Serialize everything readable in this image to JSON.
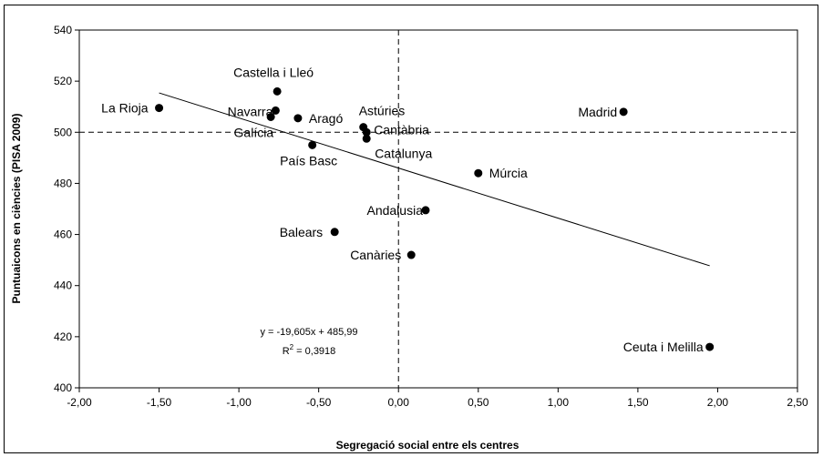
{
  "chart_data": {
    "type": "scatter",
    "xlabel": "Segregació social entre els centres",
    "ylabel": "Puntuaicons en ciències (PISA 2009)",
    "xlim": [
      -2.0,
      2.5
    ],
    "ylim": [
      400,
      540
    ],
    "x_ticks": [
      -2.0,
      -1.5,
      -1.0,
      -0.5,
      0.0,
      0.5,
      1.0,
      1.5,
      2.0,
      2.5
    ],
    "x_tick_labels": [
      "-2,00",
      "-1,50",
      "-1,00",
      "-0,50",
      "0,00",
      "0,50",
      "1,00",
      "1,50",
      "2,00",
      "2,50"
    ],
    "y_ticks": [
      400,
      420,
      440,
      460,
      480,
      500,
      520,
      540
    ],
    "y_tick_labels": [
      "400",
      "420",
      "440",
      "460",
      "480",
      "500",
      "520",
      "540"
    ],
    "grid": false,
    "reference_lines": {
      "x": 0,
      "y": 500,
      "style": "dashed"
    },
    "points": [
      {
        "label": "La Rioja",
        "x": -1.5,
        "y": 509.5
      },
      {
        "label": "Castella i Lleó",
        "x": -0.76,
        "y": 516
      },
      {
        "label": "Navarra",
        "x": -0.77,
        "y": 508.5
      },
      {
        "label": "Galícia",
        "x": -0.8,
        "y": 506
      },
      {
        "label": "Aragó",
        "x": -0.63,
        "y": 505.5
      },
      {
        "label": "País Basc",
        "x": -0.54,
        "y": 495
      },
      {
        "label": "Astúries",
        "x": -0.22,
        "y": 502
      },
      {
        "label": "Cantàbria",
        "x": -0.2,
        "y": 500
      },
      {
        "label": "Catalunya",
        "x": -0.2,
        "y": 497.5
      },
      {
        "label": "Madrid",
        "x": 1.41,
        "y": 508
      },
      {
        "label": "Múrcia",
        "x": 0.5,
        "y": 484
      },
      {
        "label": "Andalusia",
        "x": 0.17,
        "y": 469.5
      },
      {
        "label": "Balears",
        "x": -0.4,
        "y": 461
      },
      {
        "label": "Canàries",
        "x": 0.08,
        "y": 452
      },
      {
        "label": "Ceuta i Melilla",
        "x": 1.95,
        "y": 416
      }
    ],
    "trendline": {
      "slope": -19.605,
      "intercept": 485.99,
      "x_range": [
        -1.5,
        1.95
      ],
      "equation_text": "y = -19,605x + 485,99",
      "r2_prefix": "R",
      "r2_sup": "2",
      "r2_suffix": " = 0,3918"
    }
  }
}
